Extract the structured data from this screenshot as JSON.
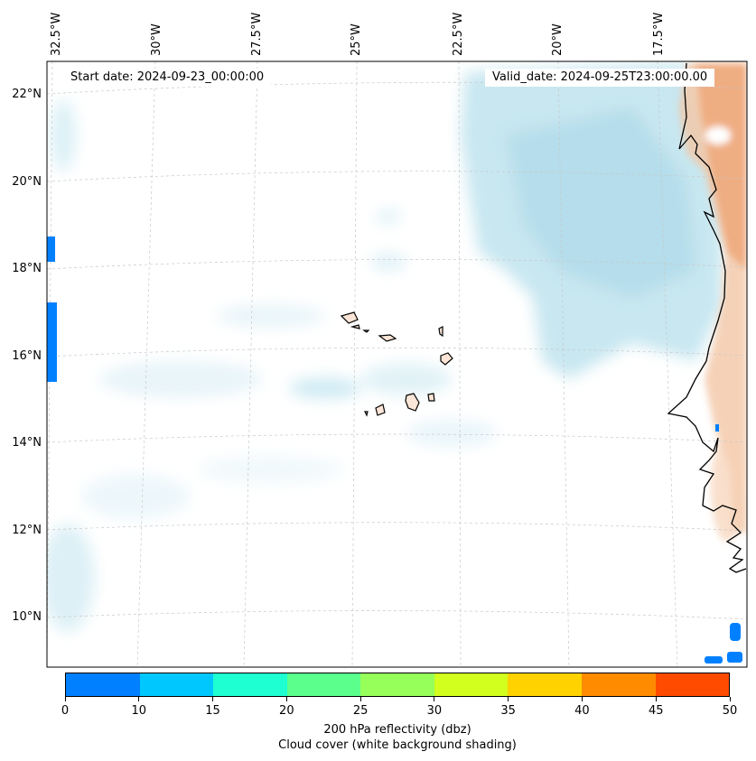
{
  "map": {
    "start_date": "Start date: 2024-09-23_00:00:00",
    "valid_date": "Valid_date: 2024-09-25T23:00:00.00",
    "longitude_labels": [
      "32.5°W",
      "30°W",
      "27.5°W",
      "25°W",
      "22.5°W",
      "20°W",
      "17.5°W"
    ],
    "latitude_labels": [
      "22°N",
      "20°N",
      "18°N",
      "16°N",
      "14°N",
      "12°N",
      "10°N"
    ]
  },
  "colorbar": {
    "colors": [
      "#0080ff",
      "#00c8ff",
      "#1effd2",
      "#5aff8c",
      "#96ff5a",
      "#d2ff1e",
      "#ffd200",
      "#ff8c00",
      "#ff4b00"
    ],
    "ticks": [
      "0",
      "10",
      "15",
      "20",
      "25",
      "30",
      "35",
      "40",
      "45",
      "50"
    ],
    "label_line1": "200 hPa reflectivity (dbz)",
    "label_line2": "Cloud cover (white background shading)"
  }
}
